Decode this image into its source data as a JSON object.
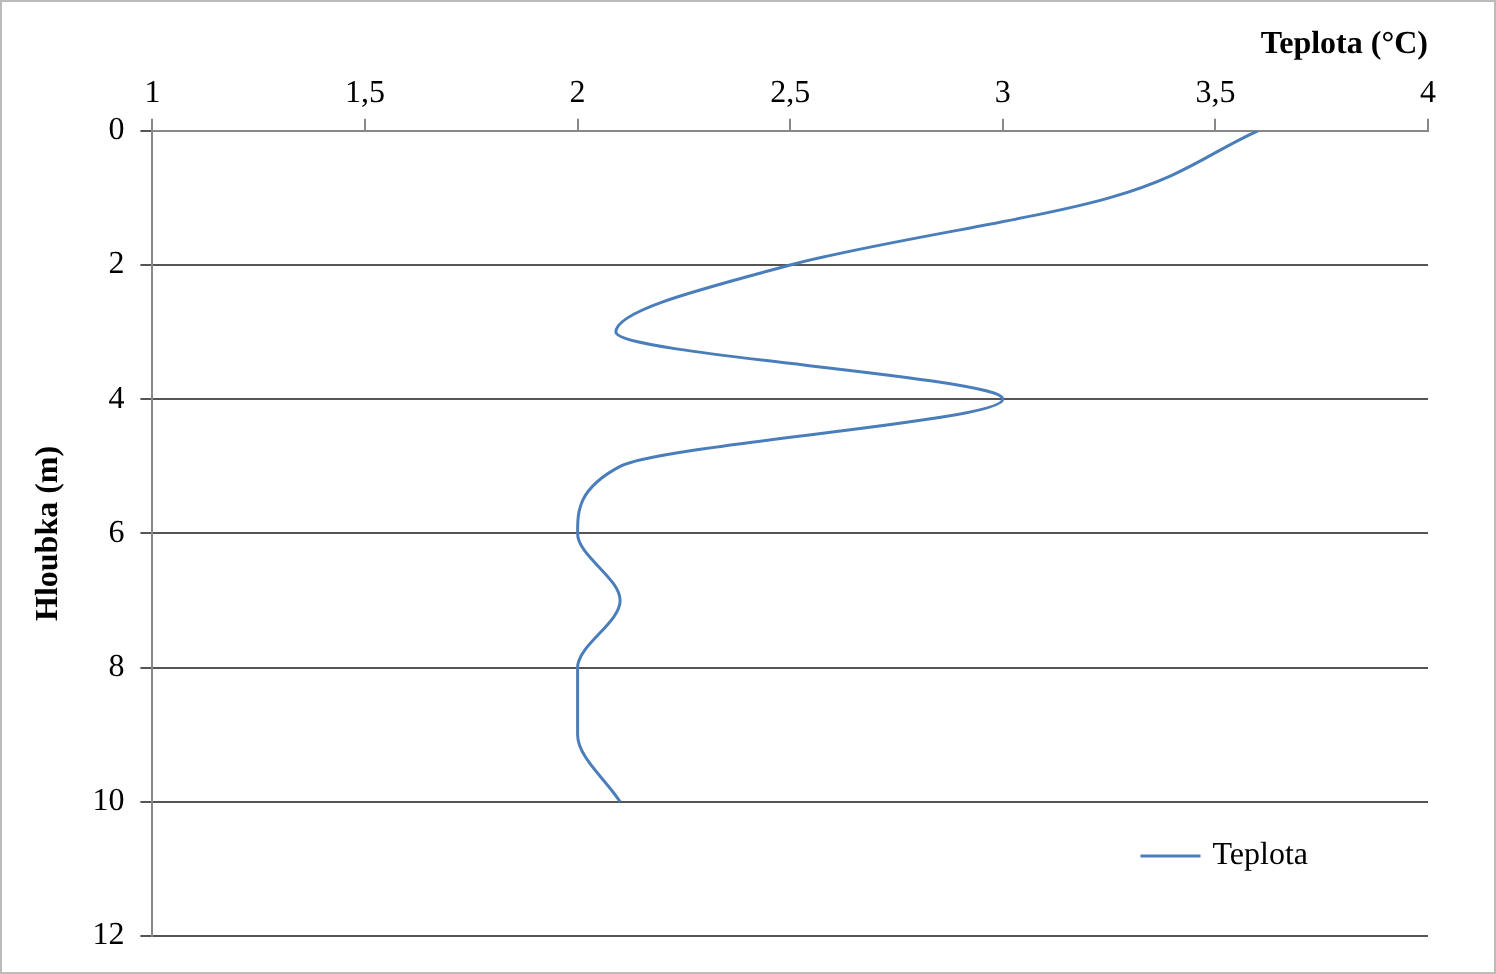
{
  "chart_data": {
    "type": "line",
    "xlabel": "Teplota (°C)",
    "ylabel": "Hloubka (m)",
    "xlim": [
      1,
      4
    ],
    "xticks": [
      1,
      {
        "value": 1.5,
        "label": "1,5"
      },
      2,
      {
        "value": 2.5,
        "label": "2,5"
      },
      3,
      {
        "value": 3.5,
        "label": "3,5"
      },
      4
    ],
    "ylim": [
      12,
      0
    ],
    "yticks": [
      0,
      2,
      4,
      6,
      8,
      10,
      12
    ],
    "grid": "y",
    "legend": "bottom right",
    "line_style": "solid",
    "marker": "none",
    "series": [
      {
        "name": "Teplota",
        "color": "#4a7ebb",
        "x": [
          3.6,
          3.25,
          2.5,
          2.09,
          3.0,
          2.1,
          2.0,
          2.1,
          2.0,
          2.0,
          2.1
        ],
        "values": [
          0,
          1,
          2,
          3,
          4,
          5,
          6,
          7,
          8,
          9,
          10
        ]
      }
    ]
  }
}
